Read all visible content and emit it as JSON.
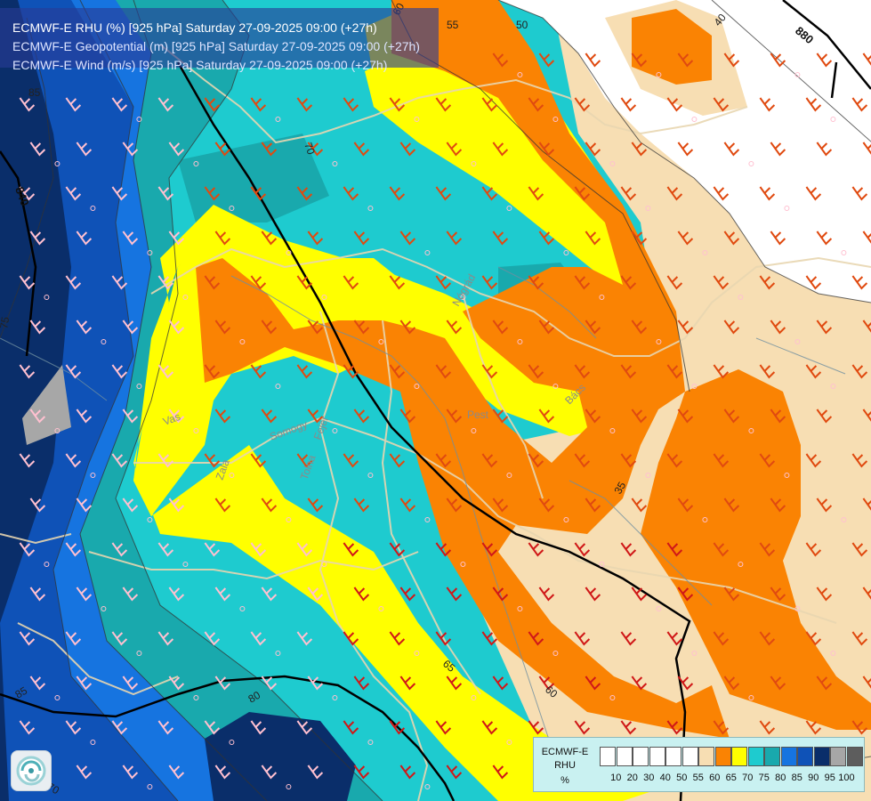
{
  "header": {
    "line1": "ECMWF-E RHU (%) [925 hPa] Saturday 27-09-2025 09:00 (+27h)",
    "line2": "ECMWF-E Geopotential (m) [925 hPa] Saturday 27-09-2025 09:00 (+27h)",
    "line3": "ECMWF-E Wind (m/s) [925 hPa] Saturday 27-09-2025 09:00 (+27h)"
  },
  "legend": {
    "title1": "ECMWF-E",
    "title2": "RHU",
    "unit": "%",
    "bins": [
      {
        "label": "",
        "color": "#ffffff"
      },
      {
        "label": "10",
        "color": "#ffffff"
      },
      {
        "label": "20",
        "color": "#ffffff"
      },
      {
        "label": "30",
        "color": "#ffffff"
      },
      {
        "label": "40",
        "color": "#ffffff"
      },
      {
        "label": "50",
        "color": "#ffffff"
      },
      {
        "label": "55",
        "color": "#f7deb3"
      },
      {
        "label": "60",
        "color": "#fa8303"
      },
      {
        "label": "65",
        "color": "#ffff00"
      },
      {
        "label": "70",
        "color": "#1ecbcf"
      },
      {
        "label": "75",
        "color": "#19a9ad"
      },
      {
        "label": "80",
        "color": "#1674e0"
      },
      {
        "label": "85",
        "color": "#0f52b7"
      },
      {
        "label": "90",
        "color": "#0a2e6a"
      },
      {
        "label": "95",
        "color": "#a7a7a7"
      },
      {
        "label": "100",
        "color": "#5d5d5d"
      }
    ]
  },
  "contours": {
    "rhu_labels": [
      "50",
      "55",
      "60",
      "40",
      "85",
      "70",
      "75",
      "65",
      "35",
      "65",
      "60",
      "80",
      "70",
      "85"
    ],
    "geopotential_labels": [
      "880",
      "840"
    ]
  },
  "places": [
    "Pest",
    "Bács",
    "Vas",
    "Somogy",
    "Fejér",
    "Tolna",
    "Zala",
    "Nógrád"
  ],
  "colors": {
    "boundary": "#e8d6b0",
    "river": "#6f8fa0",
    "geopotential": "#000000",
    "barb_dark": "#e04a10",
    "barb_red": "#d01818",
    "barb_light": "#ffc0d0"
  }
}
